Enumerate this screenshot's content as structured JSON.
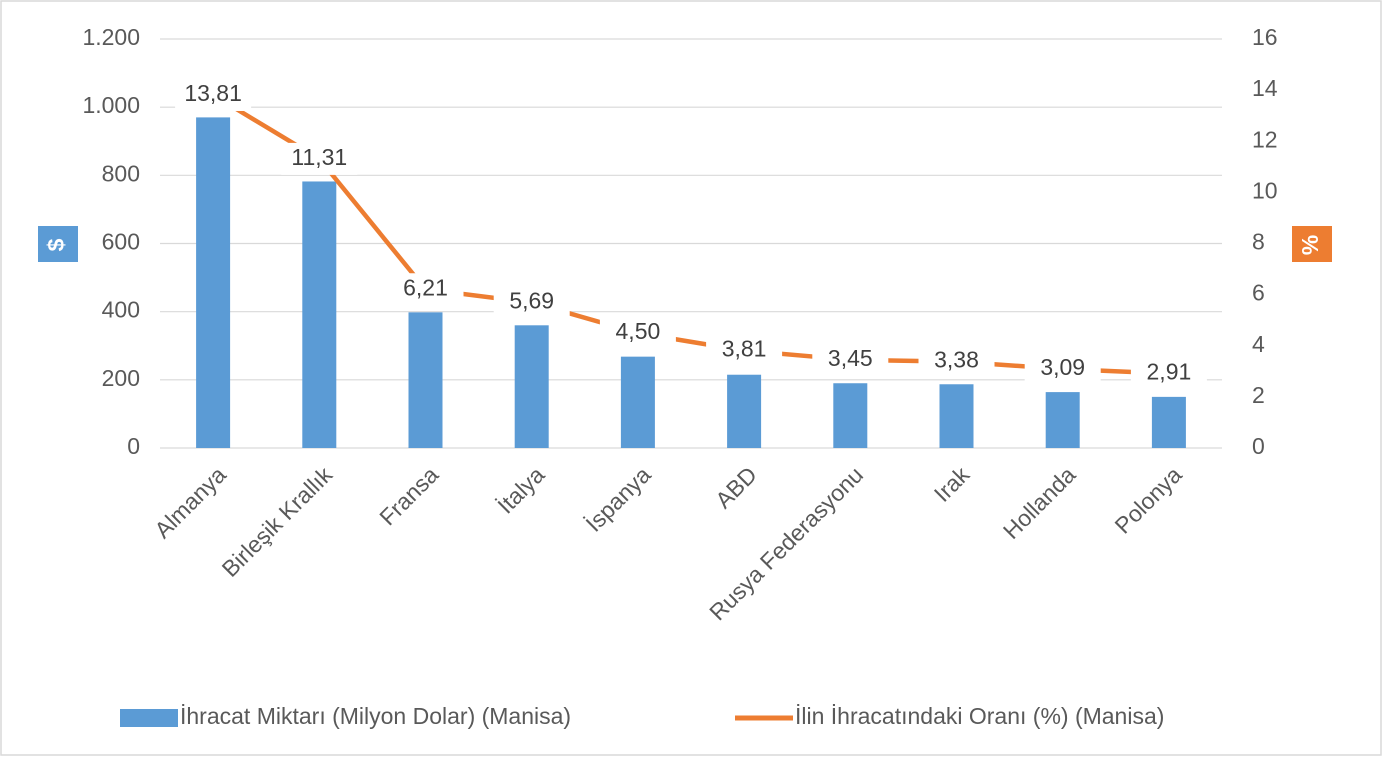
{
  "chart_data": {
    "type": "bar",
    "categories": [
      "Almanya",
      "Birleşik Krallık",
      "Fransa",
      "İtalya",
      "İspanya",
      "ABD",
      "Rusya Federasyonu",
      "Irak",
      "Hollanda",
      "Polonya"
    ],
    "series": [
      {
        "name": "İhracat Miktarı (Milyon Dolar) (Manisa)",
        "color": "#5b9bd5",
        "type": "bar",
        "values": [
          970,
          782,
          398,
          360,
          268,
          215,
          190,
          187,
          164,
          150
        ]
      },
      {
        "name": "İlin İhracatındaki Oranı (%) (Manisa)",
        "color": "#ed7d31",
        "type": "line",
        "axis": "y2",
        "values": [
          13.81,
          11.31,
          6.21,
          5.69,
          4.5,
          3.81,
          3.45,
          3.38,
          3.09,
          2.91
        ],
        "value_labels": [
          "13,81",
          "11,31",
          "6,21",
          "5,69",
          "4,50",
          "3,81",
          "3,45",
          "3,38",
          "3,09",
          "2,91"
        ]
      }
    ],
    "y_label": "$",
    "y2_label": "%",
    "ylim": [
      0,
      1200
    ],
    "yticks": [
      0,
      200,
      400,
      600,
      800,
      {
        "value": 1000,
        "label": "1.000"
      },
      {
        "value": 1200,
        "label": "1.200"
      }
    ],
    "y2lim": [
      0,
      16
    ],
    "y2ticks": [
      0,
      2,
      4,
      6,
      8,
      10,
      12,
      14,
      16
    ],
    "grid": true,
    "legend": "bottom"
  }
}
